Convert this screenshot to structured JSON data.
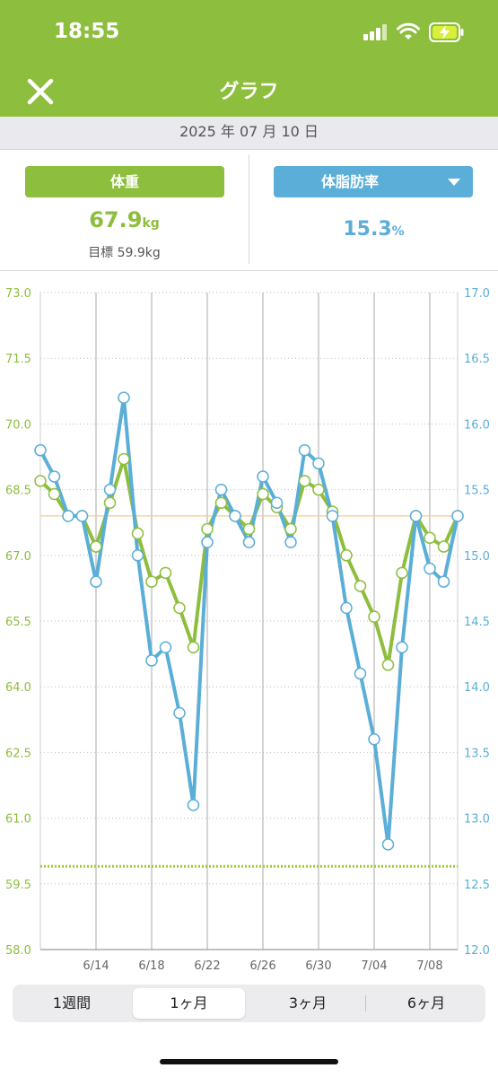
{
  "status_bar": {
    "time": "18:55"
  },
  "header": {
    "title": "グラフ",
    "close_icon": "close-icon"
  },
  "date": "2025 年 07 月 10 日",
  "weight": {
    "label": "体重",
    "value": "67.9",
    "unit": "kg",
    "goal": "目標 59.9kg",
    "color": "#8dbe3d"
  },
  "body_fat": {
    "label": "体脂肪率",
    "value": "15.3",
    "unit": "%",
    "color": "#5aaed8"
  },
  "period_tabs": [
    {
      "label": "1週間",
      "selected": false
    },
    {
      "label": "1ヶ月",
      "selected": true
    },
    {
      "label": "3ヶ月",
      "selected": false
    },
    {
      "label": "6ヶ月",
      "selected": false
    }
  ],
  "chart_data": {
    "type": "line",
    "x": [
      "6/10",
      "6/11",
      "6/12",
      "6/13",
      "6/14",
      "6/15",
      "6/16",
      "6/17",
      "6/18",
      "6/19",
      "6/20",
      "6/21",
      "6/22",
      "6/23",
      "6/24",
      "6/25",
      "6/26",
      "6/27",
      "6/28",
      "6/29",
      "6/30",
      "7/01",
      "7/02",
      "7/03",
      "7/04",
      "7/05",
      "7/06",
      "7/07",
      "7/08",
      "7/09",
      "7/10"
    ],
    "x_ticks": [
      "6/14",
      "6/18",
      "6/22",
      "6/26",
      "6/30",
      "7/04",
      "7/08"
    ],
    "y_left": {
      "ticks": [
        "73.0",
        "71.5",
        "70.0",
        "68.5",
        "67.0",
        "65.5",
        "64.0",
        "62.5",
        "61.0",
        "59.5",
        "58.0"
      ],
      "ylim": [
        58,
        73
      ],
      "color": "#8dbe3d"
    },
    "y_right": {
      "ticks": [
        "17.0",
        "16.5",
        "16.0",
        "15.5",
        "15.0",
        "14.5",
        "14.0",
        "13.5",
        "13.0",
        "12.5",
        "12.0"
      ],
      "ylim": [
        12,
        17
      ],
      "color": "#5aaed8"
    },
    "series": [
      {
        "axis": "left",
        "color": "#8dbe3d",
        "values": [
          68.7,
          68.4,
          67.9,
          67.9,
          67.2,
          68.2,
          69.2,
          67.5,
          66.4,
          66.6,
          65.8,
          64.9,
          67.6,
          68.2,
          67.9,
          67.6,
          68.4,
          68.1,
          67.6,
          68.7,
          68.5,
          68.0,
          67.0,
          66.3,
          65.6,
          64.5,
          66.6,
          67.9,
          67.4,
          67.2,
          67.9
        ]
      },
      {
        "axis": "right",
        "color": "#5aaed8",
        "values": [
          15.8,
          15.6,
          15.3,
          15.3,
          14.8,
          15.5,
          16.2,
          15.0,
          14.2,
          14.3,
          13.8,
          13.1,
          15.1,
          15.5,
          15.3,
          15.1,
          15.6,
          15.4,
          15.1,
          15.8,
          15.7,
          15.3,
          14.6,
          14.1,
          13.6,
          12.8,
          14.3,
          15.3,
          14.9,
          14.8,
          15.3
        ]
      }
    ],
    "reference_lines": [
      {
        "axis": "left",
        "value": 67.9,
        "style": "solid",
        "color": "#f2cc8f"
      },
      {
        "axis": "left",
        "value": 59.9,
        "style": "dotted",
        "color": "#9acd32"
      }
    ],
    "grid": true
  }
}
